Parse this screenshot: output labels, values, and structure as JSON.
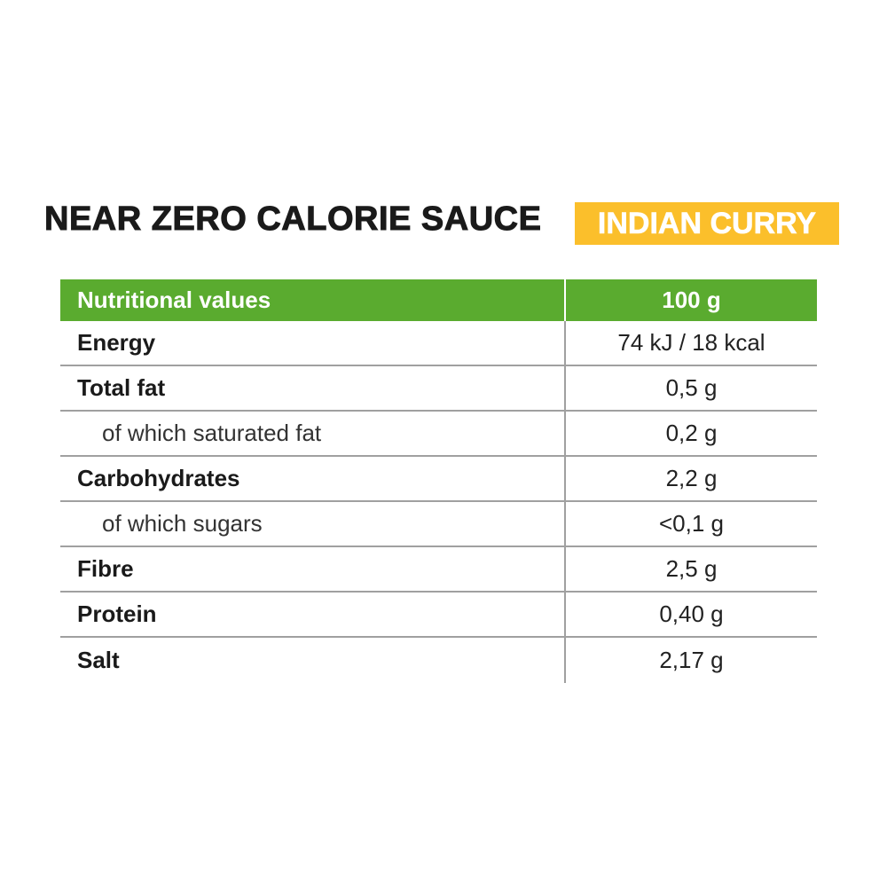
{
  "header": {
    "title": "NEAR ZERO CALORIE SAUCE",
    "badge": "INDIAN CURRY"
  },
  "table": {
    "columns": [
      "Nutritional values",
      "100 g"
    ],
    "rows": [
      {
        "label": "Energy",
        "value": "74 kJ / 18 kcal",
        "sub": false
      },
      {
        "label": "Total fat",
        "value": "0,5 g",
        "sub": false
      },
      {
        "label": "of which saturated fat",
        "value": "0,2 g",
        "sub": true
      },
      {
        "label": "Carbohydrates",
        "value": "2,2 g",
        "sub": false
      },
      {
        "label": "of which sugars",
        "value": "<0,1 g",
        "sub": true
      },
      {
        "label": "Fibre",
        "value": "2,5 g",
        "sub": false
      },
      {
        "label": "Protein",
        "value": "0,40 g",
        "sub": false
      },
      {
        "label": "Salt",
        "value": "2,17 g",
        "sub": false
      }
    ]
  }
}
